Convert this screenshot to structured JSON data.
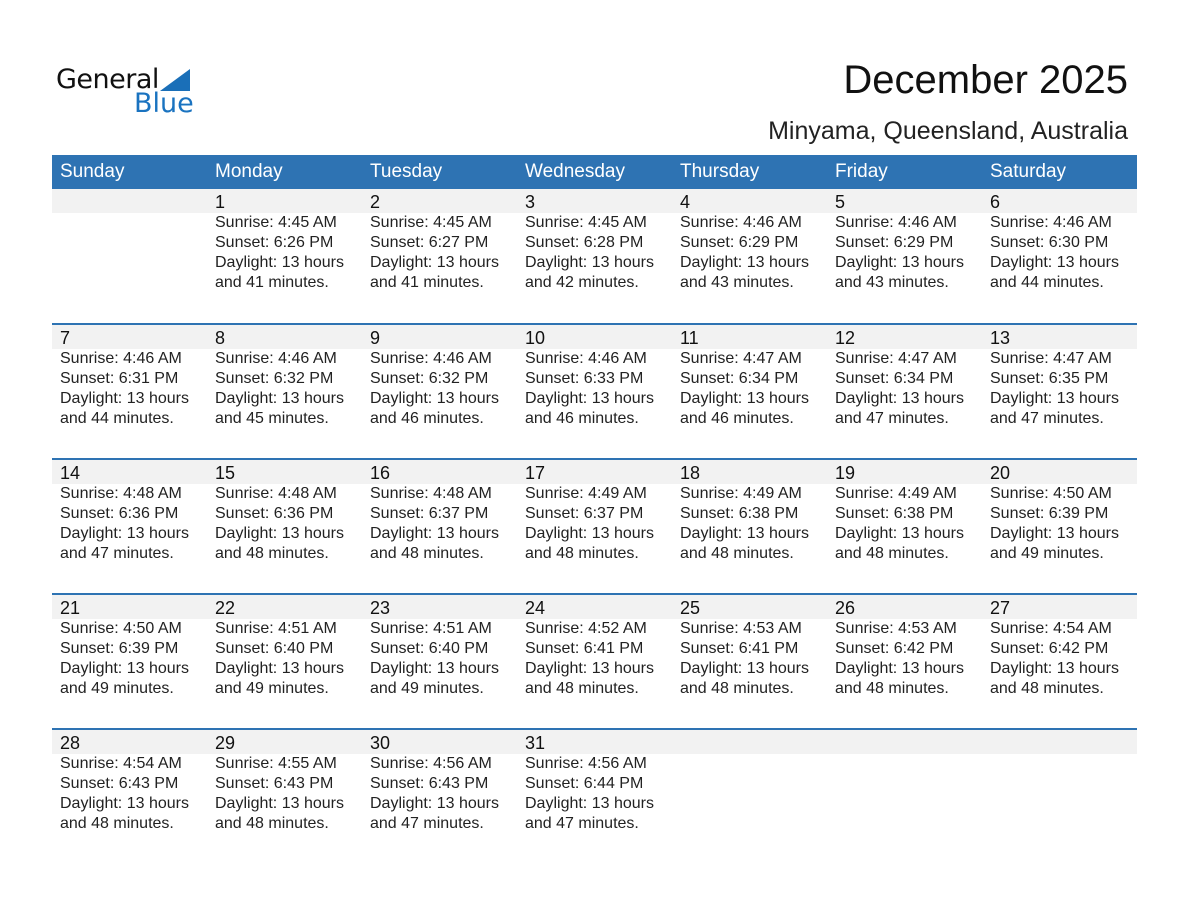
{
  "logo": {
    "word1": "General",
    "word2": "Blue"
  },
  "header": {
    "title": "December 2025",
    "location": "Minyama, Queensland, Australia"
  },
  "colors": {
    "accent": "#2e73b3",
    "band": "#f2f2f2"
  },
  "weekdays": [
    "Sunday",
    "Monday",
    "Tuesday",
    "Wednesday",
    "Thursday",
    "Friday",
    "Saturday"
  ],
  "first_weekday_index": 1,
  "days": [
    {
      "day": "1",
      "sunrise": "Sunrise: 4:45 AM",
      "sunset": "Sunset: 6:26 PM",
      "daylight": "Daylight: 13 hours",
      "minutes": "and 41 minutes."
    },
    {
      "day": "2",
      "sunrise": "Sunrise: 4:45 AM",
      "sunset": "Sunset: 6:27 PM",
      "daylight": "Daylight: 13 hours",
      "minutes": "and 41 minutes."
    },
    {
      "day": "3",
      "sunrise": "Sunrise: 4:45 AM",
      "sunset": "Sunset: 6:28 PM",
      "daylight": "Daylight: 13 hours",
      "minutes": "and 42 minutes."
    },
    {
      "day": "4",
      "sunrise": "Sunrise: 4:46 AM",
      "sunset": "Sunset: 6:29 PM",
      "daylight": "Daylight: 13 hours",
      "minutes": "and 43 minutes."
    },
    {
      "day": "5",
      "sunrise": "Sunrise: 4:46 AM",
      "sunset": "Sunset: 6:29 PM",
      "daylight": "Daylight: 13 hours",
      "minutes": "and 43 minutes."
    },
    {
      "day": "6",
      "sunrise": "Sunrise: 4:46 AM",
      "sunset": "Sunset: 6:30 PM",
      "daylight": "Daylight: 13 hours",
      "minutes": "and 44 minutes."
    },
    {
      "day": "7",
      "sunrise": "Sunrise: 4:46 AM",
      "sunset": "Sunset: 6:31 PM",
      "daylight": "Daylight: 13 hours",
      "minutes": "and 44 minutes."
    },
    {
      "day": "8",
      "sunrise": "Sunrise: 4:46 AM",
      "sunset": "Sunset: 6:32 PM",
      "daylight": "Daylight: 13 hours",
      "minutes": "and 45 minutes."
    },
    {
      "day": "9",
      "sunrise": "Sunrise: 4:46 AM",
      "sunset": "Sunset: 6:32 PM",
      "daylight": "Daylight: 13 hours",
      "minutes": "and 46 minutes."
    },
    {
      "day": "10",
      "sunrise": "Sunrise: 4:46 AM",
      "sunset": "Sunset: 6:33 PM",
      "daylight": "Daylight: 13 hours",
      "minutes": "and 46 minutes."
    },
    {
      "day": "11",
      "sunrise": "Sunrise: 4:47 AM",
      "sunset": "Sunset: 6:34 PM",
      "daylight": "Daylight: 13 hours",
      "minutes": "and 46 minutes."
    },
    {
      "day": "12",
      "sunrise": "Sunrise: 4:47 AM",
      "sunset": "Sunset: 6:34 PM",
      "daylight": "Daylight: 13 hours",
      "minutes": "and 47 minutes."
    },
    {
      "day": "13",
      "sunrise": "Sunrise: 4:47 AM",
      "sunset": "Sunset: 6:35 PM",
      "daylight": "Daylight: 13 hours",
      "minutes": "and 47 minutes."
    },
    {
      "day": "14",
      "sunrise": "Sunrise: 4:48 AM",
      "sunset": "Sunset: 6:36 PM",
      "daylight": "Daylight: 13 hours",
      "minutes": "and 47 minutes."
    },
    {
      "day": "15",
      "sunrise": "Sunrise: 4:48 AM",
      "sunset": "Sunset: 6:36 PM",
      "daylight": "Daylight: 13 hours",
      "minutes": "and 48 minutes."
    },
    {
      "day": "16",
      "sunrise": "Sunrise: 4:48 AM",
      "sunset": "Sunset: 6:37 PM",
      "daylight": "Daylight: 13 hours",
      "minutes": "and 48 minutes."
    },
    {
      "day": "17",
      "sunrise": "Sunrise: 4:49 AM",
      "sunset": "Sunset: 6:37 PM",
      "daylight": "Daylight: 13 hours",
      "minutes": "and 48 minutes."
    },
    {
      "day": "18",
      "sunrise": "Sunrise: 4:49 AM",
      "sunset": "Sunset: 6:38 PM",
      "daylight": "Daylight: 13 hours",
      "minutes": "and 48 minutes."
    },
    {
      "day": "19",
      "sunrise": "Sunrise: 4:49 AM",
      "sunset": "Sunset: 6:38 PM",
      "daylight": "Daylight: 13 hours",
      "minutes": "and 48 minutes."
    },
    {
      "day": "20",
      "sunrise": "Sunrise: 4:50 AM",
      "sunset": "Sunset: 6:39 PM",
      "daylight": "Daylight: 13 hours",
      "minutes": "and 49 minutes."
    },
    {
      "day": "21",
      "sunrise": "Sunrise: 4:50 AM",
      "sunset": "Sunset: 6:39 PM",
      "daylight": "Daylight: 13 hours",
      "minutes": "and 49 minutes."
    },
    {
      "day": "22",
      "sunrise": "Sunrise: 4:51 AM",
      "sunset": "Sunset: 6:40 PM",
      "daylight": "Daylight: 13 hours",
      "minutes": "and 49 minutes."
    },
    {
      "day": "23",
      "sunrise": "Sunrise: 4:51 AM",
      "sunset": "Sunset: 6:40 PM",
      "daylight": "Daylight: 13 hours",
      "minutes": "and 49 minutes."
    },
    {
      "day": "24",
      "sunrise": "Sunrise: 4:52 AM",
      "sunset": "Sunset: 6:41 PM",
      "daylight": "Daylight: 13 hours",
      "minutes": "and 48 minutes."
    },
    {
      "day": "25",
      "sunrise": "Sunrise: 4:53 AM",
      "sunset": "Sunset: 6:41 PM",
      "daylight": "Daylight: 13 hours",
      "minutes": "and 48 minutes."
    },
    {
      "day": "26",
      "sunrise": "Sunrise: 4:53 AM",
      "sunset": "Sunset: 6:42 PM",
      "daylight": "Daylight: 13 hours",
      "minutes": "and 48 minutes."
    },
    {
      "day": "27",
      "sunrise": "Sunrise: 4:54 AM",
      "sunset": "Sunset: 6:42 PM",
      "daylight": "Daylight: 13 hours",
      "minutes": "and 48 minutes."
    },
    {
      "day": "28",
      "sunrise": "Sunrise: 4:54 AM",
      "sunset": "Sunset: 6:43 PM",
      "daylight": "Daylight: 13 hours",
      "minutes": "and 48 minutes."
    },
    {
      "day": "29",
      "sunrise": "Sunrise: 4:55 AM",
      "sunset": "Sunset: 6:43 PM",
      "daylight": "Daylight: 13 hours",
      "minutes": "and 48 minutes."
    },
    {
      "day": "30",
      "sunrise": "Sunrise: 4:56 AM",
      "sunset": "Sunset: 6:43 PM",
      "daylight": "Daylight: 13 hours",
      "minutes": "and 47 minutes."
    },
    {
      "day": "31",
      "sunrise": "Sunrise: 4:56 AM",
      "sunset": "Sunset: 6:44 PM",
      "daylight": "Daylight: 13 hours",
      "minutes": "and 47 minutes."
    }
  ]
}
